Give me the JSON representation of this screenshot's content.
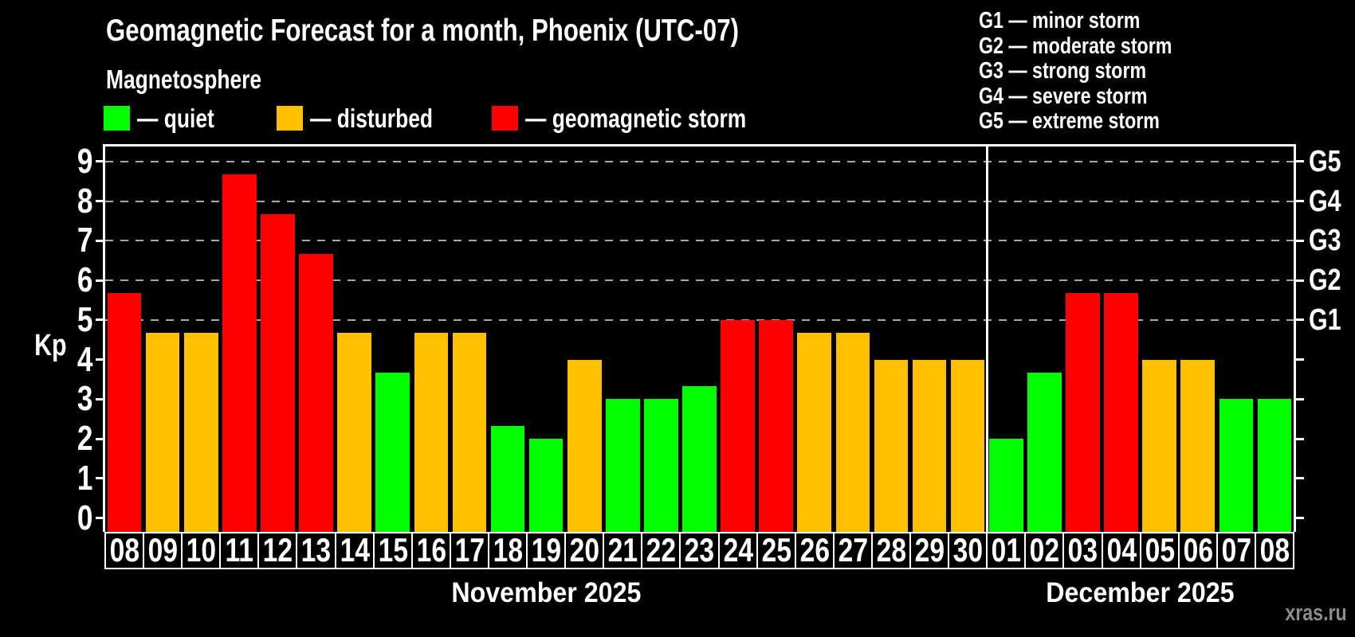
{
  "title": "Geomagnetic Forecast for a month, Phoenix (UTC-07)",
  "subtitle": "Magnetosphere",
  "legend": {
    "items": [
      {
        "name": "quiet",
        "label": "— quiet",
        "color": "#00ff00"
      },
      {
        "name": "disturbed",
        "label": "— disturbed",
        "color": "#ffc000"
      },
      {
        "name": "storm",
        "label": "— geomagnetic storm",
        "color": "#ff0000"
      }
    ]
  },
  "g_scale_legend": [
    "G1 — minor storm",
    "G2 — moderate storm",
    "G3 — strong storm",
    "G4 — severe storm",
    "G5 — extreme storm"
  ],
  "y_axis": {
    "label": "Kp",
    "ticks": [
      "0",
      "1",
      "2",
      "3",
      "4",
      "5",
      "6",
      "7",
      "8",
      "9"
    ]
  },
  "right_axis": {
    "labels": [
      {
        "kp": 5,
        "label": "G1"
      },
      {
        "kp": 6,
        "label": "G2"
      },
      {
        "kp": 7,
        "label": "G3"
      },
      {
        "kp": 8,
        "label": "G4"
      },
      {
        "kp": 9,
        "label": "G5"
      }
    ]
  },
  "months": [
    {
      "label": "November 2025",
      "days": 23
    },
    {
      "label": "December 2025",
      "days": 8
    }
  ],
  "watermark": "xras.ru",
  "chart_data": {
    "type": "bar",
    "title": "Geomagnetic Forecast for a month, Phoenix (UTC-07)",
    "ylabel": "Kp",
    "ylim": [
      0,
      9
    ],
    "gridlines_at": [
      5,
      6,
      7,
      8,
      9
    ],
    "legend_position": "top",
    "categories": [
      "08",
      "09",
      "10",
      "11",
      "12",
      "13",
      "14",
      "15",
      "16",
      "17",
      "18",
      "19",
      "20",
      "21",
      "22",
      "23",
      "24",
      "25",
      "26",
      "27",
      "28",
      "29",
      "30",
      "01",
      "02",
      "03",
      "04",
      "05",
      "06",
      "07",
      "08"
    ],
    "values": [
      5.67,
      4.67,
      4.67,
      8.67,
      7.67,
      6.67,
      4.67,
      3.67,
      4.67,
      4.67,
      2.33,
      2.0,
      4.0,
      3.0,
      3.0,
      3.33,
      5.0,
      5.0,
      4.67,
      4.67,
      4.0,
      4.0,
      4.0,
      2.0,
      3.67,
      5.67,
      5.67,
      4.0,
      4.0,
      3.0,
      3.0
    ],
    "statuses": [
      "storm",
      "disturbed",
      "disturbed",
      "storm",
      "storm",
      "storm",
      "disturbed",
      "quiet",
      "disturbed",
      "disturbed",
      "quiet",
      "quiet",
      "disturbed",
      "quiet",
      "quiet",
      "quiet",
      "storm",
      "storm",
      "disturbed",
      "disturbed",
      "disturbed",
      "disturbed",
      "disturbed",
      "quiet",
      "quiet",
      "storm",
      "storm",
      "disturbed",
      "disturbed",
      "quiet",
      "quiet"
    ],
    "colors": {
      "quiet": "#00ff00",
      "disturbed": "#ffc000",
      "storm": "#ff0000"
    }
  }
}
